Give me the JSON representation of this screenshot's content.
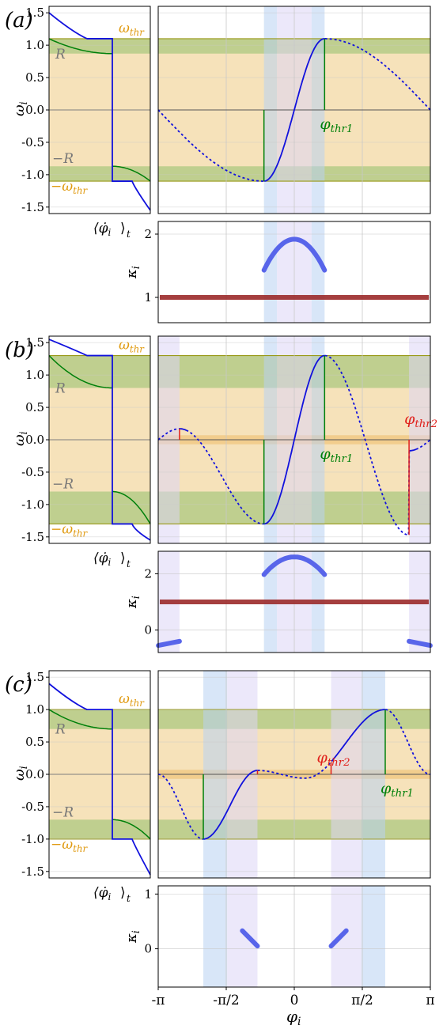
{
  "figure": {
    "x_tick_labels": [
      "-π",
      "-π/2",
      "0",
      "π/2",
      "π"
    ],
    "x_label": "φ",
    "x_label_sub": "i"
  },
  "chart_data": [
    {
      "type": "line",
      "panel_label": "(a)",
      "R": 0.87,
      "omega_thr": 1.1,
      "drive": "sin",
      "ylim": [
        -1.6,
        1.6
      ],
      "yticks": [
        -1.5,
        -1.0,
        -0.5,
        0.0,
        0.5,
        1.0,
        1.5
      ],
      "ytick_labels": [
        "-1.5",
        "-1.0",
        "-0.5",
        "0.0",
        "0.5",
        "1.0",
        "1.5"
      ],
      "ylabel": "ω_i",
      "left_xlabel": "⟨φ̇_i⟩_t",
      "labels": {
        "omega_thr": "ω_thr",
        "neg_omega_thr": "−ω_thr",
        "R": "R",
        "neg_R": "−R",
        "phi_thr1": "φ_thr1"
      },
      "series": [
        {
          "name": "omega_i",
          "x_range": [
            -3.1416,
            3.1416
          ],
          "solid_ranges": [
            [
              -0.7,
              0.7
            ]
          ]
        }
      ],
      "thresholds": [
        {
          "name": "φ_thr1",
          "x": 0.7,
          "color": "#00800a"
        }
      ],
      "vbands": [
        {
          "x": [
            -0.7,
            -0.4
          ],
          "color": "#b8d2f2"
        },
        {
          "x": [
            -0.4,
            0.4
          ],
          "color": "#dcd6f5"
        },
        {
          "x": [
            0.4,
            0.7
          ],
          "color": "#b8d2f2"
        }
      ],
      "kappa": {
        "ylim": [
          0.6,
          2.2
        ],
        "yticks": [
          1,
          2
        ],
        "ytick_labels": [
          "1",
          "2"
        ],
        "ylabel": "κ_i",
        "flat_level": 1.0,
        "arcs": [
          {
            "x": [
              -0.7,
              0.7
            ],
            "peak": 1.92,
            "end": 1.43
          }
        ]
      }
    },
    {
      "type": "line",
      "panel_label": "(b)",
      "R": 0.8,
      "omega_thr": 1.3,
      "drive": "sin_plus_second_harmonic",
      "ylim": [
        -1.6,
        1.6
      ],
      "yticks": [
        -1.5,
        -1.0,
        -0.5,
        0.0,
        0.5,
        1.0,
        1.5
      ],
      "ytick_labels": [
        "-1.5",
        "-1.0",
        "-0.5",
        "0.0",
        "0.5",
        "1.0",
        "1.5"
      ],
      "ylabel": "ω_i",
      "left_xlabel": "⟨φ̇_i⟩_t",
      "labels": {
        "omega_thr": "ω_thr",
        "neg_omega_thr": "−ω_thr",
        "R": "R",
        "neg_R": "−R",
        "phi_thr1": "φ_thr1",
        "phi_thr2": "φ_thr2"
      },
      "series": [
        {
          "name": "omega_i",
          "x_range": [
            -3.1416,
            3.1416
          ],
          "solid_ranges": [
            [
              -2.65,
              -2.5
            ],
            [
              -0.7,
              0.7
            ],
            [
              2.65,
              2.8
            ]
          ]
        }
      ],
      "thresholds": [
        {
          "name": "φ_thr1",
          "x": 0.7,
          "color": "#00800a"
        },
        {
          "name": "φ_thr2",
          "x": 2.65,
          "color": "#e0201b"
        }
      ],
      "vbands": [
        {
          "x": [
            -3.14,
            -2.65
          ],
          "color": "#dcd6f5"
        },
        {
          "x": [
            -0.7,
            -0.4
          ],
          "color": "#b8d2f2"
        },
        {
          "x": [
            -0.4,
            0.4
          ],
          "color": "#dcd6f5"
        },
        {
          "x": [
            0.4,
            0.7
          ],
          "color": "#b8d2f2"
        },
        {
          "x": [
            2.65,
            3.14
          ],
          "color": "#dcd6f5"
        }
      ],
      "kappa": {
        "ylim": [
          -0.8,
          2.8
        ],
        "yticks": [
          0,
          2
        ],
        "ytick_labels": [
          "0",
          "2"
        ],
        "ylabel": "κ_i",
        "flat_level": 1.0,
        "arcs": [
          {
            "x": [
              -0.7,
              0.7
            ],
            "peak": 2.6,
            "end": 1.97
          }
        ],
        "edge_tails": [
          {
            "x": [
              -3.14,
              -2.65
            ],
            "y": [
              -0.55,
              -0.4
            ]
          },
          {
            "x": [
              2.65,
              3.14
            ],
            "y": [
              -0.4,
              -0.55
            ]
          }
        ]
      }
    },
    {
      "type": "line",
      "panel_label": "(c)",
      "R": 0.7,
      "omega_thr": 1.0,
      "drive": "asymmetric",
      "ylim": [
        -1.6,
        1.6
      ],
      "yticks": [
        -1.5,
        -1.0,
        -0.5,
        0.0,
        0.5,
        1.0,
        1.5
      ],
      "ytick_labels": [
        "-1.5",
        "-1.0",
        "-0.5",
        "0.0",
        "0.5",
        "1.0",
        "1.5"
      ],
      "ylabel": "ω_i",
      "left_xlabel": "⟨φ̇_i⟩_t",
      "labels": {
        "omega_thr": "ω_thr",
        "neg_omega_thr": "−ω_thr",
        "R": "R",
        "neg_R": "−R",
        "phi_thr1": "φ_thr1",
        "phi_thr2": "φ_thr2"
      },
      "series": [
        {
          "name": "omega_i",
          "x_range": [
            -3.1416,
            3.1416
          ],
          "solid_ranges": [
            [
              -2.1,
              -0.85
            ],
            [
              0.85,
              2.1
            ]
          ]
        }
      ],
      "thresholds": [
        {
          "name": "φ_thr1",
          "x": 2.1,
          "color": "#00800a"
        },
        {
          "name": "φ_thr2",
          "x": 0.85,
          "color": "#e0201b"
        }
      ],
      "vbands": [
        {
          "x": [
            -2.1,
            -1.55
          ],
          "color": "#b8d2f2"
        },
        {
          "x": [
            -1.55,
            -0.85
          ],
          "color": "#dcd6f5"
        },
        {
          "x": [
            0.85,
            1.55
          ],
          "color": "#dcd6f5"
        },
        {
          "x": [
            1.55,
            2.1
          ],
          "color": "#b8d2f2"
        }
      ],
      "kappa": {
        "ylim": [
          -0.7,
          1.15
        ],
        "yticks": [
          0,
          1
        ],
        "ytick_labels": [
          "0",
          "1"
        ],
        "ylabel": "κ_i",
        "arcs_linear": [
          {
            "x": [
              -1.2,
              -0.85
            ],
            "y": [
              0.33,
              0.05
            ]
          },
          {
            "x": [
              0.85,
              1.2
            ],
            "y": [
              0.05,
              0.33
            ]
          }
        ]
      }
    }
  ],
  "colors": {
    "curve": "#1111dd",
    "green": "#00800a",
    "red": "#e0201b",
    "orange_band": "#f5dfb3",
    "olive_band": "#bfcf8f",
    "olive_line": "#9a9a1a",
    "blue_band": "#b8d2f2",
    "lavender_band": "#dcd6f5",
    "dark_red": "#9b2a2a",
    "kappa_arc": "#5865ea",
    "orange_label": "#e09a10",
    "grid": "#c8c8c8"
  }
}
